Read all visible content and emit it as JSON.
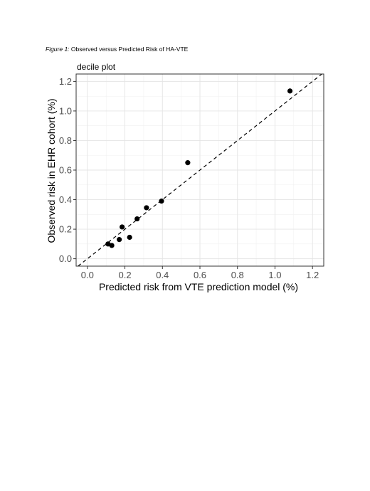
{
  "caption": {
    "figure_label": "Figure 1:",
    "text": "Observed versus Predicted Risk of HA-VTE"
  },
  "chart_data": {
    "type": "scatter",
    "subtitle": "decile plot",
    "xlabel": "Predicted risk from VTE prediction model (%)",
    "ylabel": "Observed risk in EHR cohort (%)",
    "xlim": [
      -0.06,
      1.26
    ],
    "ylim": [
      -0.05,
      1.25
    ],
    "xticks": [
      "0.0",
      "0.2",
      "0.4",
      "0.6",
      "0.8",
      "1.0",
      "1.2"
    ],
    "yticks": [
      "0.0",
      "0.2",
      "0.4",
      "0.6",
      "0.8",
      "1.0",
      "1.2"
    ],
    "reference_line": "y = x, dashed",
    "grid": true,
    "points": [
      {
        "x": 0.11,
        "y": 0.1
      },
      {
        "x": 0.13,
        "y": 0.09
      },
      {
        "x": 0.17,
        "y": 0.13
      },
      {
        "x": 0.185,
        "y": 0.215
      },
      {
        "x": 0.225,
        "y": 0.145
      },
      {
        "x": 0.265,
        "y": 0.27
      },
      {
        "x": 0.315,
        "y": 0.345
      },
      {
        "x": 0.395,
        "y": 0.39
      },
      {
        "x": 0.535,
        "y": 0.65
      },
      {
        "x": 1.08,
        "y": 1.135
      }
    ]
  }
}
